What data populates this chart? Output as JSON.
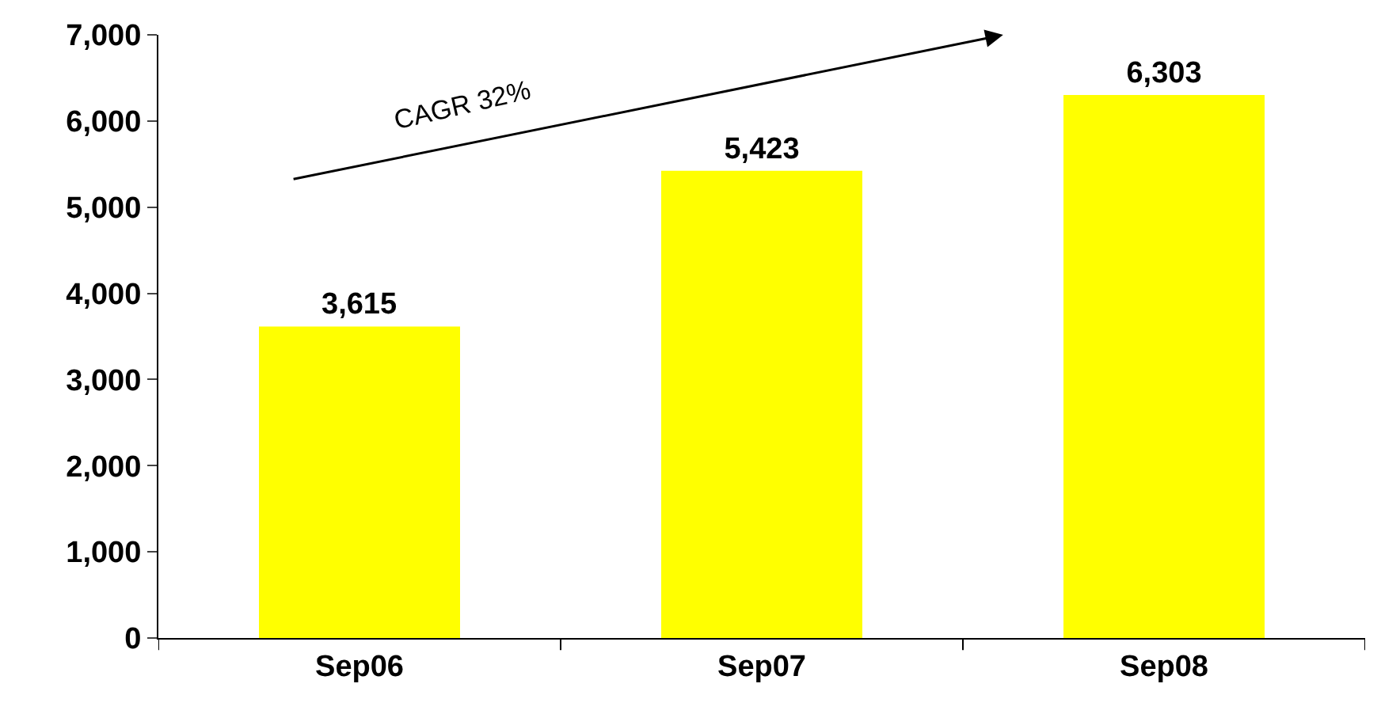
{
  "chart_data": {
    "type": "bar",
    "categories": [
      "Sep06",
      "Sep07",
      "Sep08"
    ],
    "values": [
      3615,
      5423,
      6303
    ],
    "color": "#ffff00",
    "ylim": [
      0,
      7000
    ],
    "yticks": [
      {
        "value": 0,
        "label": "0"
      },
      {
        "value": 1000,
        "label": "1,000"
      },
      {
        "value": 2000,
        "label": "2,000"
      },
      {
        "value": 3000,
        "label": "3,000"
      },
      {
        "value": 4000,
        "label": "4,000"
      },
      {
        "value": 5000,
        "label": "5,000"
      },
      {
        "value": 6000,
        "label": "6,000"
      },
      {
        "value": 7000,
        "label": "7,000"
      }
    ],
    "legend": false,
    "value_labels": [
      "3,615",
      "5,423",
      "6,303"
    ],
    "annotations": [
      "CAGR 32%"
    ]
  }
}
